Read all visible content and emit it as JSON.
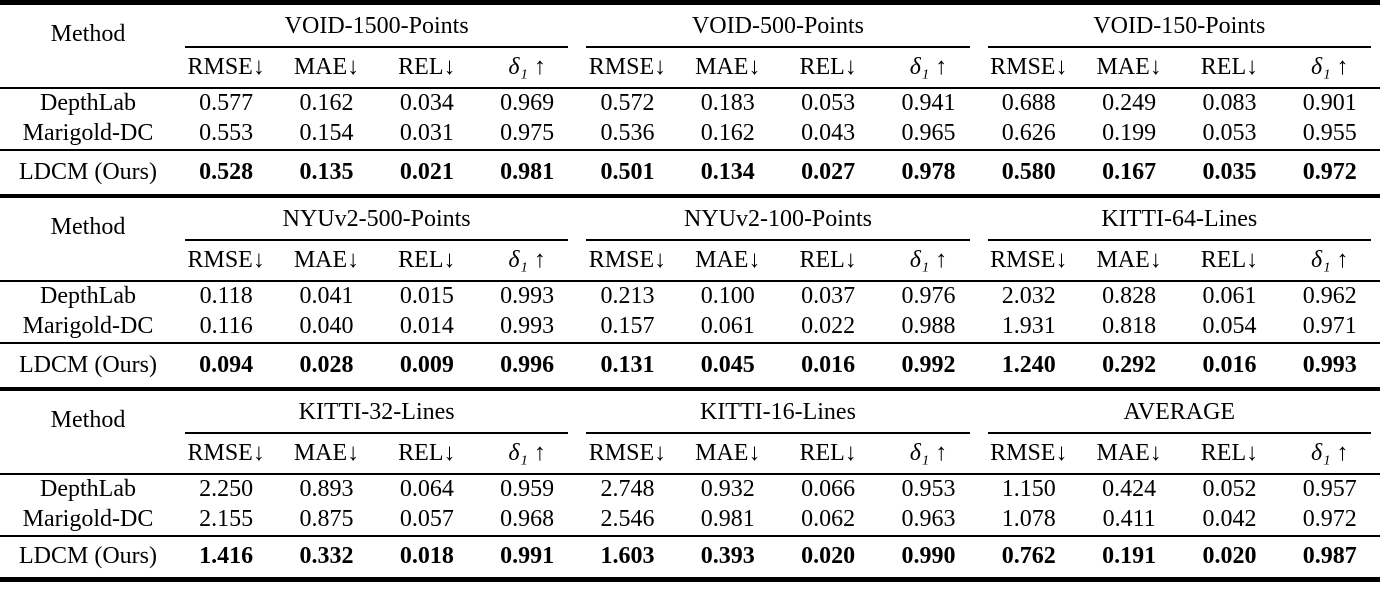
{
  "table": {
    "method_header": "Method",
    "metric_headers": [
      "RMSE↓",
      "MAE↓",
      "REL↓",
      "δ₁ ↑"
    ],
    "text_color": "#000000",
    "background_color": "#ffffff",
    "sections": [
      {
        "benchmarks": [
          "VOID-1500-Points",
          "VOID-500-Points",
          "VOID-150-Points"
        ],
        "rows": [
          {
            "method": "DepthLab",
            "bold": false,
            "values": [
              "0.577",
              "0.162",
              "0.034",
              "0.969",
              "0.572",
              "0.183",
              "0.053",
              "0.941",
              "0.688",
              "0.249",
              "0.083",
              "0.901"
            ]
          },
          {
            "method": "Marigold-DC",
            "bold": false,
            "values": [
              "0.553",
              "0.154",
              "0.031",
              "0.975",
              "0.536",
              "0.162",
              "0.043",
              "0.965",
              "0.626",
              "0.199",
              "0.053",
              "0.955"
            ]
          },
          {
            "method": "LDCM (Ours)",
            "bold": true,
            "values": [
              "0.528",
              "0.135",
              "0.021",
              "0.981",
              "0.501",
              "0.134",
              "0.027",
              "0.978",
              "0.580",
              "0.167",
              "0.035",
              "0.972"
            ]
          }
        ]
      },
      {
        "benchmarks": [
          "NYUv2-500-Points",
          "NYUv2-100-Points",
          "KITTI-64-Lines"
        ],
        "rows": [
          {
            "method": "DepthLab",
            "bold": false,
            "values": [
              "0.118",
              "0.041",
              "0.015",
              "0.993",
              "0.213",
              "0.100",
              "0.037",
              "0.976",
              "2.032",
              "0.828",
              "0.061",
              "0.962"
            ]
          },
          {
            "method": "Marigold-DC",
            "bold": false,
            "values": [
              "0.116",
              "0.040",
              "0.014",
              "0.993",
              "0.157",
              "0.061",
              "0.022",
              "0.988",
              "1.931",
              "0.818",
              "0.054",
              "0.971"
            ]
          },
          {
            "method": "LDCM (Ours)",
            "bold": true,
            "values": [
              "0.094",
              "0.028",
              "0.009",
              "0.996",
              "0.131",
              "0.045",
              "0.016",
              "0.992",
              "1.240",
              "0.292",
              "0.016",
              "0.993"
            ]
          }
        ]
      },
      {
        "benchmarks": [
          "KITTI-32-Lines",
          "KITTI-16-Lines",
          "AVERAGE"
        ],
        "rows": [
          {
            "method": "DepthLab",
            "bold": false,
            "values": [
              "2.250",
              "0.893",
              "0.064",
              "0.959",
              "2.748",
              "0.932",
              "0.066",
              "0.953",
              "1.150",
              "0.424",
              "0.052",
              "0.957"
            ]
          },
          {
            "method": "Marigold-DC",
            "bold": false,
            "values": [
              "2.155",
              "0.875",
              "0.057",
              "0.968",
              "2.546",
              "0.981",
              "0.062",
              "0.963",
              "1.078",
              "0.411",
              "0.042",
              "0.972"
            ]
          },
          {
            "method": "LDCM (Ours)",
            "bold": true,
            "values": [
              "1.416",
              "0.332",
              "0.018",
              "0.991",
              "1.603",
              "0.393",
              "0.020",
              "0.990",
              "0.762",
              "0.191",
              "0.020",
              "0.987"
            ]
          }
        ]
      }
    ]
  }
}
